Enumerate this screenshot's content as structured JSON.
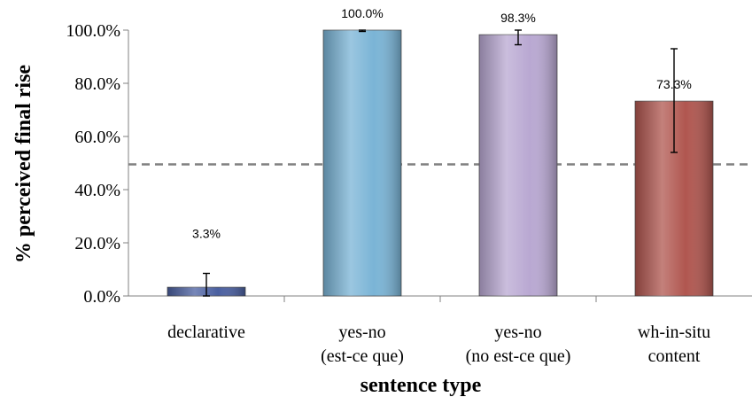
{
  "chart_data": {
    "type": "bar",
    "categories": [
      [
        "declarative"
      ],
      [
        "yes-no",
        "(est-ce que)"
      ],
      [
        "yes-no",
        "(no est-ce que)"
      ],
      [
        "wh-in-situ",
        "content"
      ]
    ],
    "values": [
      3.3,
      100.0,
      98.3,
      73.3
    ],
    "data_labels": [
      "3.3%",
      "100.0%",
      "98.3%",
      "73.3%"
    ],
    "error_bars": [
      [
        0.0,
        8.5
      ],
      [
        99.5,
        100.0
      ],
      [
        94.5,
        100.0
      ],
      [
        54.0,
        93.0
      ]
    ],
    "colors": [
      "#4a5fa0",
      "#7ab4d6",
      "#b9a8d2",
      "#b0564f"
    ],
    "xlabel": "sentence type",
    "ylabel": "% perceived final rise",
    "ylim": [
      0,
      100
    ],
    "yticks": [
      "0.0%",
      "20.0%",
      "40.0%",
      "60.0%",
      "80.0%",
      "100.0%"
    ],
    "reference_line": 49.5,
    "grid": false
  }
}
